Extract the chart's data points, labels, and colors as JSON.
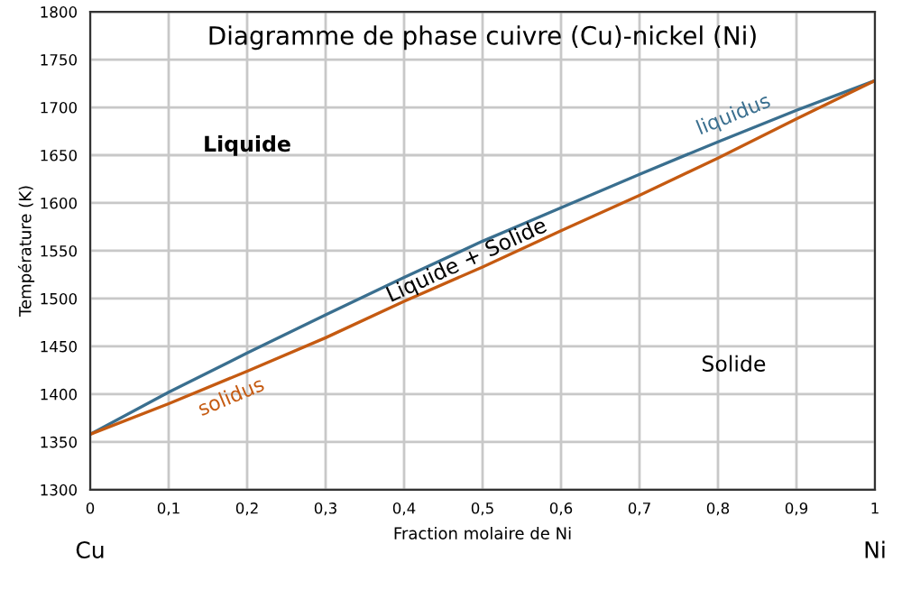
{
  "chart_data": {
    "type": "line",
    "title": "Diagramme de phase cuivre (Cu)-nickel (Ni)",
    "xlabel": "Fraction molaire de Ni",
    "ylabel": "Température (K)",
    "x": [
      0,
      0.1,
      0.2,
      0.3,
      0.4,
      0.5,
      0.6,
      0.7,
      0.8,
      0.9,
      1
    ],
    "series": [
      {
        "name": "liquidus",
        "color": "#3a6f8f",
        "values": [
          1358,
          1402,
          1443,
          1483,
          1522,
          1560,
          1595,
          1630,
          1664,
          1697,
          1728
        ]
      },
      {
        "name": "solidus",
        "color": "#c55a11",
        "values": [
          1358,
          1390,
          1424,
          1459,
          1497,
          1533,
          1571,
          1608,
          1647,
          1688,
          1728
        ]
      }
    ],
    "xlim": [
      0,
      1
    ],
    "ylim": [
      1300,
      1800
    ],
    "xticks": [
      0,
      {
        "value": 0.1,
        "label": "0,1"
      },
      {
        "value": 0.2,
        "label": "0,2"
      },
      {
        "value": 0.3,
        "label": "0,3"
      },
      {
        "value": 0.4,
        "label": "0,4"
      },
      {
        "value": 0.5,
        "label": "0,5"
      },
      {
        "value": 0.6,
        "label": "0,6"
      },
      {
        "value": 0.7,
        "label": "0,7"
      },
      {
        "value": 0.8,
        "label": "0,8"
      },
      {
        "value": 0.9,
        "label": "0,9"
      },
      1
    ],
    "yticks": [
      1300,
      1350,
      1400,
      1450,
      1500,
      1550,
      1600,
      1650,
      1700,
      1750,
      1800
    ],
    "annotations": [
      "Liquide",
      "Liquide + Solide",
      "Solide",
      "Cu",
      "Ni"
    ],
    "grid": true,
    "legend": false,
    "marker": "none",
    "line_style": "solid"
  }
}
